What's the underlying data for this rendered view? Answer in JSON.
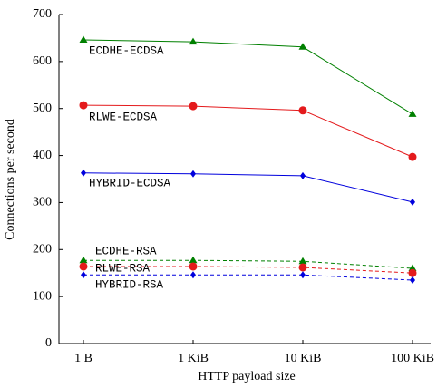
{
  "chart_data": {
    "type": "line",
    "x_label": "HTTP payload size",
    "y_label": "Connections per second",
    "categories": [
      "1 B",
      "1 KiB",
      "10 KiB",
      "100 KiB"
    ],
    "ylim": [
      0,
      700
    ],
    "yticks": [
      0,
      100,
      200,
      300,
      400,
      500,
      600,
      700
    ],
    "series": [
      {
        "name": "ECDHE-ECDSA",
        "color": "#008000",
        "linestyle": "solid",
        "marker": "triangle",
        "values": [
          646,
          642,
          631,
          488
        ]
      },
      {
        "name": "RLWE-ECDSA",
        "color": "#e41a1c",
        "linestyle": "solid",
        "marker": "circle",
        "values": [
          507,
          505,
          496,
          397
        ]
      },
      {
        "name": "HYBRID-ECDSA",
        "color": "#0000dd",
        "linestyle": "solid",
        "marker": "diamond",
        "values": [
          363,
          361,
          357,
          301
        ]
      },
      {
        "name": "ECDHE-RSA",
        "color": "#008000",
        "linestyle": "dashed",
        "marker": "triangle",
        "values": [
          177,
          177,
          175,
          160
        ]
      },
      {
        "name": "RLWE-RSA",
        "color": "#e41a1c",
        "linestyle": "dashed",
        "marker": "circle",
        "values": [
          164,
          164,
          162,
          150
        ]
      },
      {
        "name": "HYBRID-RSA",
        "color": "#0000dd",
        "linestyle": "dashed",
        "marker": "diamond",
        "values": [
          146,
          146,
          146,
          135
        ]
      }
    ]
  }
}
